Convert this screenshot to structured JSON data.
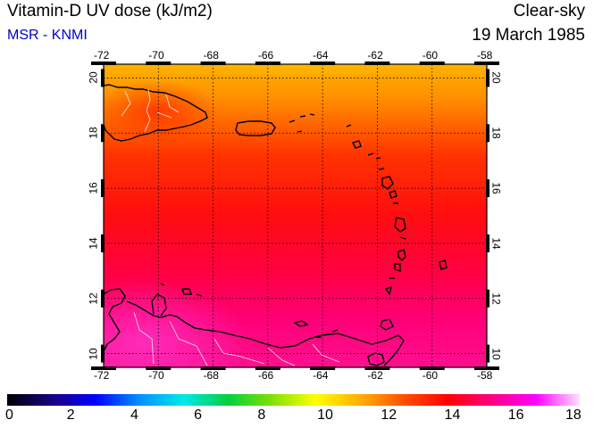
{
  "header": {
    "title": "Vitamin-D UV dose (kJ/m2)",
    "source": "MSR - KNMI",
    "scenario": "Clear-sky",
    "date": "19 March 1985"
  },
  "map": {
    "lon_ticks": [
      "-72",
      "-70",
      "-68",
      "-66",
      "-64",
      "-62",
      "-60",
      "-58"
    ],
    "lat_ticks": [
      "20",
      "18",
      "16",
      "14",
      "12",
      "10"
    ],
    "lon_range": [
      -72,
      -58
    ],
    "lat_range": [
      9.5,
      20.5
    ],
    "grid": true
  },
  "colorbar": {
    "labels": [
      "0",
      "2",
      "4",
      "6",
      "8",
      "10",
      "12",
      "14",
      "16",
      "18"
    ],
    "range": [
      0,
      18
    ],
    "colors": [
      "#000000",
      "#1a0080",
      "#0000ff",
      "#0090ff",
      "#00e8e8",
      "#00d040",
      "#80e000",
      "#ffff00",
      "#ffb000",
      "#ff5000",
      "#ff0000",
      "#ff0080",
      "#ff00ff",
      "#ffe0ff"
    ]
  }
}
